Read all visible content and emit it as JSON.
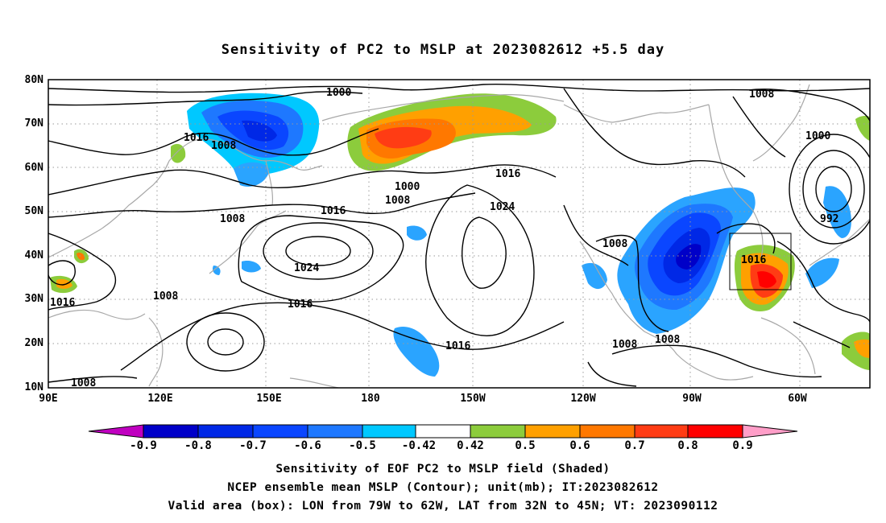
{
  "title": "Sensitivity of PC2 to MSLP at 2023082612 +5.5 day",
  "lat_labels": [
    "80N",
    "70N",
    "60N",
    "50N",
    "40N",
    "30N",
    "20N",
    "10N"
  ],
  "lon_labels": [
    "90E",
    "120E",
    "150E",
    "180",
    "150W",
    "120W",
    "90W",
    "60W"
  ],
  "colorbar": {
    "labels": [
      "-0.9",
      "-0.8",
      "-0.7",
      "-0.6",
      "-0.5",
      "-0.42",
      "0.42",
      "0.5",
      "0.6",
      "0.7",
      "0.8",
      "0.9"
    ],
    "colors": [
      "#c000c0",
      "#0000c8",
      "#0028e6",
      "#0a46ff",
      "#1e78ff",
      "#2aa4ff",
      "#00c8ff",
      "#ffffff",
      "#8ccc3c",
      "#ffa000",
      "#ff7800",
      "#ff3c14",
      "#ff0000",
      "#ff9ec8"
    ]
  },
  "contour_labels": [
    "1000",
    "1016",
    "1008",
    "1000",
    "1016",
    "1008",
    "1008",
    "1016",
    "1024",
    "1024",
    "1016",
    "1008",
    "1016",
    "1008",
    "1008",
    "1008",
    "1016",
    "1008",
    "1000",
    "992",
    "1008",
    "1016"
  ],
  "valid_box": {
    "lon_from": "79W",
    "lon_to": "62W",
    "lat_from": "32N",
    "lat_to": "45N"
  },
  "captions": [
    "Sensitivity of EOF PC2 to MSLP field (Shaded)",
    "NCEP ensemble mean MSLP (Contour); unit(mb); IT:2023082612",
    "Valid area (box): LON from 79W to 62W, LAT from 32N to 45N; VT: 2023090112"
  ]
}
